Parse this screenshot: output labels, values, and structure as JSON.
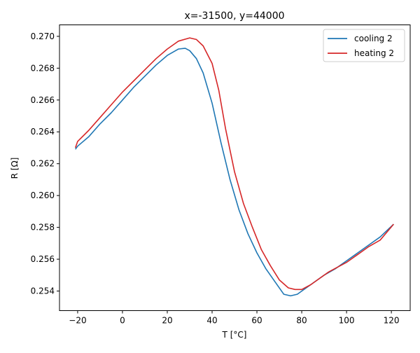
{
  "chart_data": {
    "type": "line",
    "title": "x=-31500, y=44000",
    "xlabel": "T [°C]",
    "ylabel": "R [Ω]",
    "xlim": [
      -28.1,
      128.4
    ],
    "ylim": [
      0.25277,
      0.27072
    ],
    "xticks": [
      -20,
      0,
      20,
      40,
      60,
      80,
      100,
      120
    ],
    "xtick_labels": [
      "−20",
      "0",
      "20",
      "40",
      "60",
      "80",
      "100",
      "120"
    ],
    "yticks": [
      0.254,
      0.256,
      0.258,
      0.26,
      0.262,
      0.264,
      0.266,
      0.268,
      0.27
    ],
    "ytick_labels": [
      "0.254",
      "0.256",
      "0.258",
      "0.260",
      "0.262",
      "0.264",
      "0.266",
      "0.268",
      "0.270"
    ],
    "grid": false,
    "legend_position": "top-right",
    "series": [
      {
        "name": "cooling 2",
        "color": "#1f77b4",
        "x": [
          -21,
          -20,
          -15,
          -10,
          -5,
          0,
          5,
          10,
          15,
          20,
          25,
          28,
          30,
          33,
          36,
          40,
          44,
          48,
          52,
          56,
          60,
          64,
          68,
          72,
          75,
          78,
          82,
          86,
          90,
          95,
          100,
          105,
          110,
          115,
          121
        ],
        "y": [
          0.2629,
          0.2631,
          0.2637,
          0.2645,
          0.2652,
          0.266,
          0.2668,
          0.2675,
          0.2682,
          0.2688,
          0.2692,
          0.26925,
          0.2691,
          0.2686,
          0.2677,
          0.2658,
          0.2633,
          0.261,
          0.2591,
          0.2576,
          0.2564,
          0.2554,
          0.2546,
          0.2538,
          0.2537,
          0.2538,
          0.2542,
          0.2546,
          0.255,
          0.2554,
          0.2559,
          0.2564,
          0.2569,
          0.2574,
          0.2582
        ]
      },
      {
        "name": "heating 2",
        "color": "#d62728",
        "x": [
          -21,
          -20,
          -15,
          -10,
          -5,
          0,
          5,
          10,
          15,
          20,
          25,
          30,
          33,
          36,
          40,
          43,
          46,
          50,
          54,
          58,
          62,
          66,
          70,
          74,
          77,
          80,
          84,
          88,
          92,
          96,
          100,
          105,
          110,
          115,
          121
        ],
        "y": [
          0.263,
          0.2634,
          0.2641,
          0.2649,
          0.2657,
          0.2665,
          0.2672,
          0.2679,
          0.2686,
          0.2692,
          0.2697,
          0.2699,
          0.2698,
          0.2694,
          0.2683,
          0.2666,
          0.2642,
          0.2615,
          0.2595,
          0.258,
          0.2566,
          0.2556,
          0.2547,
          0.2542,
          0.2541,
          0.2541,
          0.2544,
          0.2548,
          0.2552,
          0.2555,
          0.2558,
          0.2563,
          0.2568,
          0.2572,
          0.2582
        ]
      }
    ]
  }
}
